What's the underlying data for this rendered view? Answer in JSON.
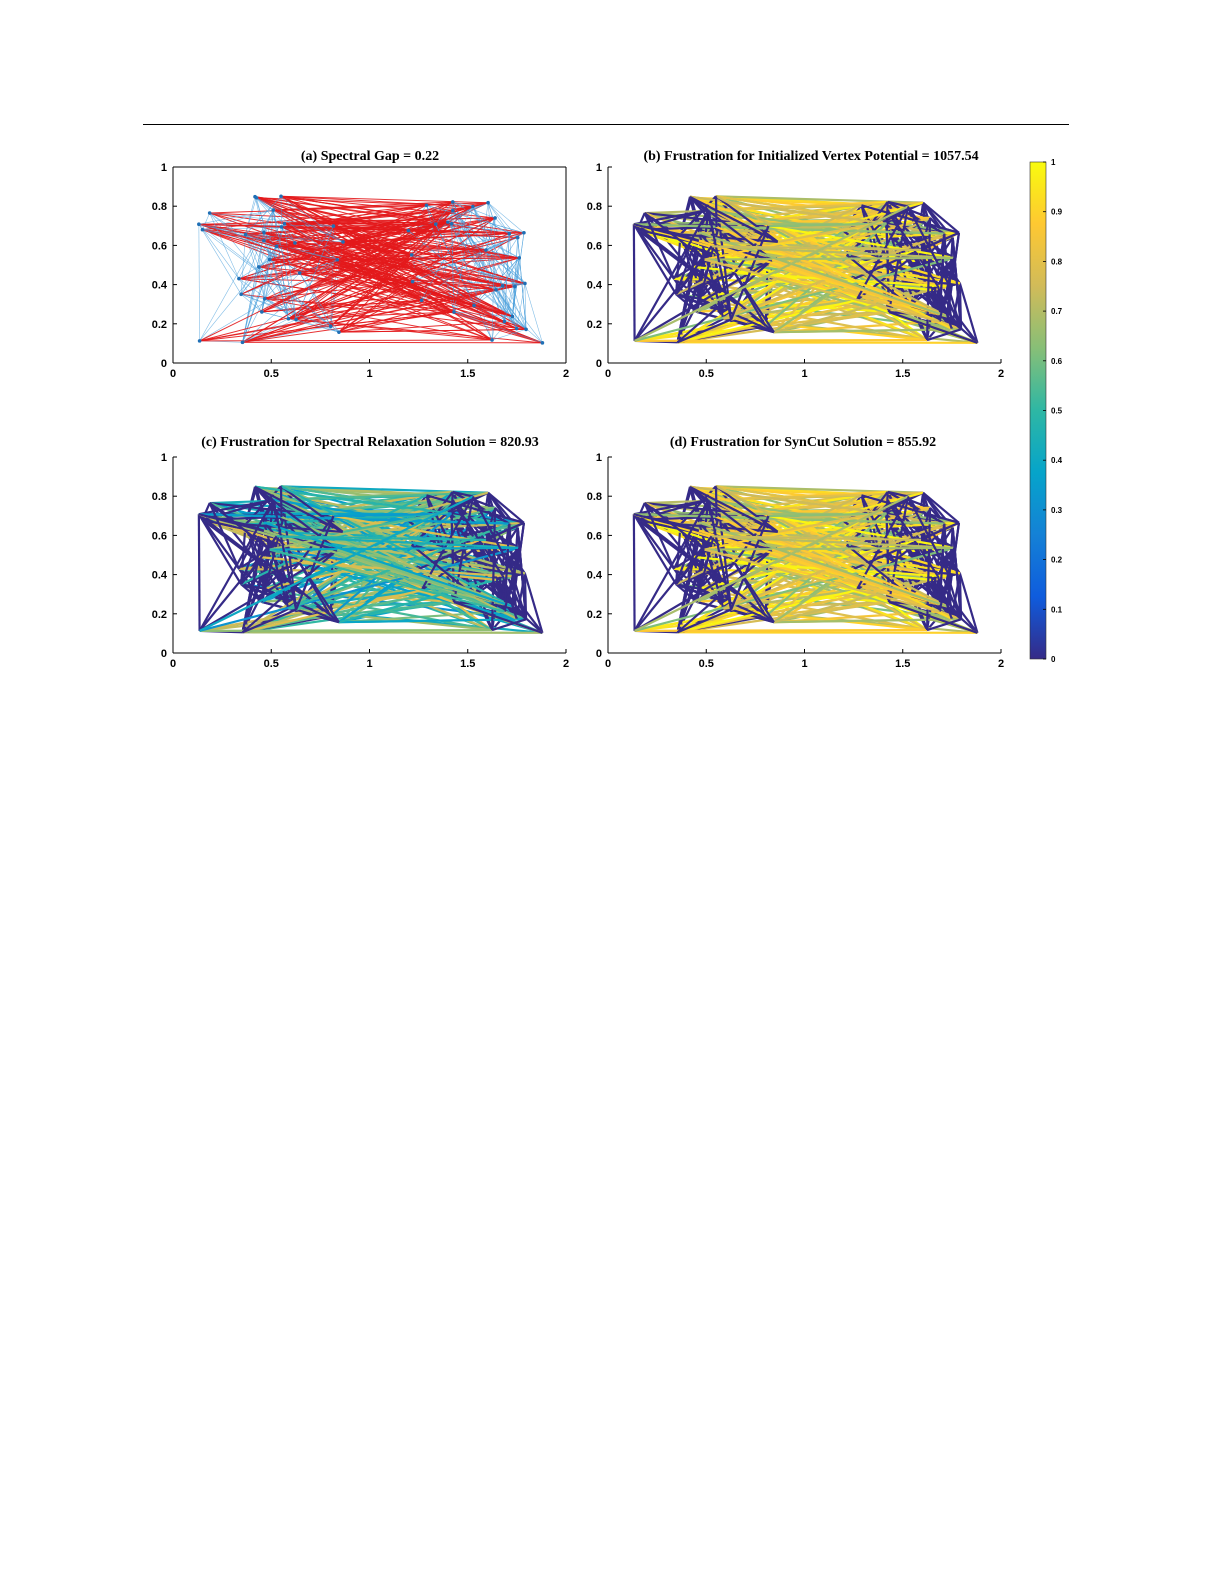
{
  "chart_data": [
    {
      "id": "a",
      "type": "network",
      "title": "(a) Spectral Gap = 0.22",
      "xlim": [
        0,
        2
      ],
      "ylim": [
        0,
        1
      ],
      "xticks": [
        "0",
        "0.5",
        "1",
        "1.5",
        "2"
      ],
      "yticks": [
        "0",
        "0.2",
        "0.4",
        "0.6",
        "0.8",
        "1"
      ],
      "edge_colors": [
        "#4a9fdc",
        "#e31a1c"
      ],
      "box": true
    },
    {
      "id": "b",
      "type": "network",
      "title": "(b) Frustration for Initialized Vertex Potential = 1057.54",
      "xlim": [
        0,
        2
      ],
      "ylim": [
        0,
        1
      ],
      "xticks": [
        "0",
        "0.5",
        "1",
        "1.5",
        "2"
      ],
      "yticks": [
        "0",
        "0.2",
        "0.4",
        "0.6",
        "0.8",
        "1"
      ],
      "cross_edge_value_range": [
        0.6,
        1.0
      ],
      "box": false
    },
    {
      "id": "c",
      "type": "network",
      "title": "(c) Frustration for Spectral Relaxation Solution = 820.93",
      "xlim": [
        0,
        2
      ],
      "ylim": [
        0,
        1
      ],
      "xticks": [
        "0",
        "0.5",
        "1",
        "1.5",
        "2"
      ],
      "yticks": [
        "0",
        "0.2",
        "0.4",
        "0.6",
        "0.8",
        "1"
      ],
      "cross_edge_value_range": [
        0.3,
        0.8
      ],
      "box": false
    },
    {
      "id": "d",
      "type": "network",
      "title": "(d) Frustration for SynCut Solution = 855.92",
      "xlim": [
        0,
        2
      ],
      "ylim": [
        0,
        1
      ],
      "xticks": [
        "0",
        "0.5",
        "1",
        "1.5",
        "2"
      ],
      "yticks": [
        "0",
        "0.2",
        "0.4",
        "0.6",
        "0.8",
        "1"
      ],
      "cross_edge_value_range": [
        0.6,
        1.0
      ],
      "box": false
    }
  ],
  "colorbar": {
    "range": [
      0,
      1
    ],
    "ticks": [
      "0",
      "0.1",
      "0.2",
      "0.3",
      "0.4",
      "0.5",
      "0.6",
      "0.7",
      "0.8",
      "0.9",
      "1"
    ],
    "colormap": [
      "#352a87",
      "#0f5cdd",
      "#1481d6",
      "#06a4ca",
      "#2eb7a4",
      "#87bf77",
      "#d1bb59",
      "#fec832",
      "#f9fb0e"
    ]
  }
}
